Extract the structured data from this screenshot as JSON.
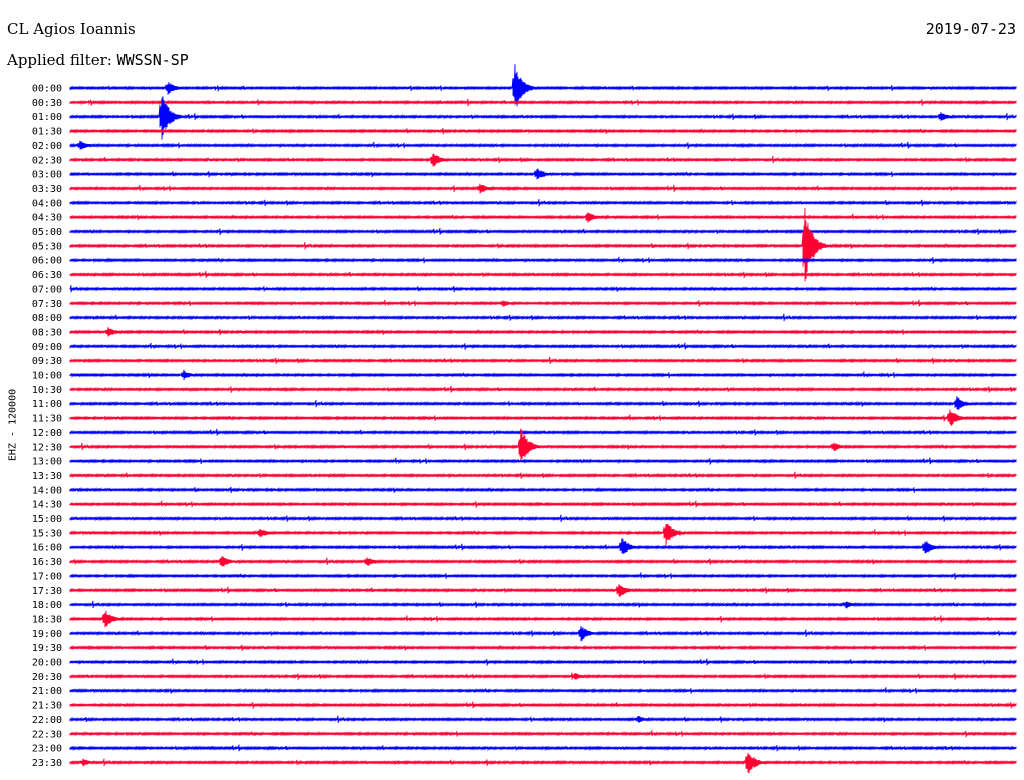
{
  "header": {
    "station": "CL Agios Ioannis",
    "date": "2019-07-23",
    "filter_label": "Applied filter:",
    "filter_value": "WWSSN-SP"
  },
  "chart_data": {
    "type": "line",
    "title": "CL Agios Ioannis",
    "ylabel": "EHZ - 120000",
    "rows": [
      "00:00",
      "00:30",
      "01:00",
      "01:30",
      "02:00",
      "02:30",
      "03:00",
      "03:30",
      "04:00",
      "04:30",
      "05:00",
      "05:30",
      "06:00",
      "06:30",
      "07:00",
      "07:30",
      "08:00",
      "08:30",
      "09:00",
      "09:30",
      "10:00",
      "10:30",
      "11:00",
      "11:30",
      "12:00",
      "12:30",
      "13:00",
      "13:30",
      "14:00",
      "14:30",
      "15:00",
      "15:30",
      "16:00",
      "16:30",
      "17:00",
      "17:30",
      "18:00",
      "18:30",
      "19:00",
      "19:30",
      "20:00",
      "20:30",
      "21:00",
      "21:30",
      "22:00",
      "22:30",
      "23:00",
      "23:30"
    ],
    "colors": {
      "even": "#0000ff",
      "odd": "#ff0033"
    },
    "time_range_minutes": [
      0,
      30
    ],
    "events": [
      {
        "row": "00:00",
        "minute": 14.1,
        "amp": 1.8
      },
      {
        "row": "00:00",
        "minute": 3.1,
        "amp": 0.5
      },
      {
        "row": "01:00",
        "minute": 2.9,
        "amp": 1.9
      },
      {
        "row": "01:00",
        "minute": 27.6,
        "amp": 0.4
      },
      {
        "row": "02:00",
        "minute": 0.3,
        "amp": 0.4
      },
      {
        "row": "02:30",
        "minute": 11.5,
        "amp": 0.6
      },
      {
        "row": "03:00",
        "minute": 14.8,
        "amp": 0.5
      },
      {
        "row": "03:30",
        "minute": 13.0,
        "amp": 0.4
      },
      {
        "row": "04:30",
        "minute": 16.4,
        "amp": 0.5
      },
      {
        "row": "05:30",
        "minute": 23.3,
        "amp": 3.0
      },
      {
        "row": "07:30",
        "minute": 13.7,
        "amp": 0.3
      },
      {
        "row": "08:30",
        "minute": 1.2,
        "amp": 0.4
      },
      {
        "row": "10:00",
        "minute": 3.6,
        "amp": 0.4
      },
      {
        "row": "11:00",
        "minute": 28.1,
        "amp": 0.6
      },
      {
        "row": "11:30",
        "minute": 27.9,
        "amp": 0.7
      },
      {
        "row": "12:30",
        "minute": 14.3,
        "amp": 1.4
      },
      {
        "row": "12:30",
        "minute": 24.2,
        "amp": 0.4
      },
      {
        "row": "15:30",
        "minute": 18.9,
        "amp": 0.9
      },
      {
        "row": "15:30",
        "minute": 6.0,
        "amp": 0.4
      },
      {
        "row": "16:00",
        "minute": 17.5,
        "amp": 0.7
      },
      {
        "row": "16:00",
        "minute": 27.1,
        "amp": 0.6
      },
      {
        "row": "16:30",
        "minute": 4.8,
        "amp": 0.5
      },
      {
        "row": "16:30",
        "minute": 9.4,
        "amp": 0.4
      },
      {
        "row": "17:30",
        "minute": 17.4,
        "amp": 0.6
      },
      {
        "row": "18:00",
        "minute": 24.6,
        "amp": 0.3
      },
      {
        "row": "18:30",
        "minute": 1.1,
        "amp": 0.7
      },
      {
        "row": "19:00",
        "minute": 16.2,
        "amp": 0.6
      },
      {
        "row": "20:30",
        "minute": 16.0,
        "amp": 0.3
      },
      {
        "row": "22:00",
        "minute": 18.0,
        "amp": 0.3
      },
      {
        "row": "23:30",
        "minute": 21.5,
        "amp": 0.9
      },
      {
        "row": "23:30",
        "minute": 0.4,
        "amp": 0.3
      }
    ]
  }
}
